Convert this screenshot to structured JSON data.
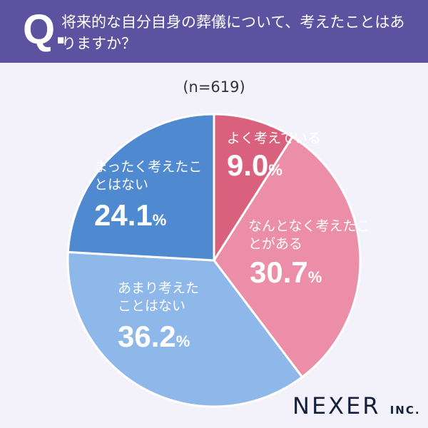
{
  "header": {
    "q_mark": "Q.",
    "question": "将来的な自分自身の葬儀について、考えたことはありますか？"
  },
  "chart_data": {
    "type": "pie",
    "title": "将来的な自分自身の葬儀について、考えたことはありますか？",
    "sample_size": "(n=619)",
    "start": "top",
    "direction": "clockwise",
    "slices": [
      {
        "label": "よく考えている",
        "value": 9.0,
        "display": "9.0",
        "color": "#d9617e"
      },
      {
        "label": "なんとなく考えたことがある",
        "value": 30.7,
        "display": "30.7",
        "color": "#ec8ea8"
      },
      {
        "label": "あまり考えたことはない",
        "value": 36.2,
        "display": "36.2",
        "color": "#8fb8ea"
      },
      {
        "label": "まったく考えたことはない",
        "value": 24.1,
        "display": "24.1",
        "color": "#4f8ad0"
      }
    ],
    "unit": "%"
  },
  "logo": {
    "name": "NEXER",
    "suffix": "INC."
  }
}
